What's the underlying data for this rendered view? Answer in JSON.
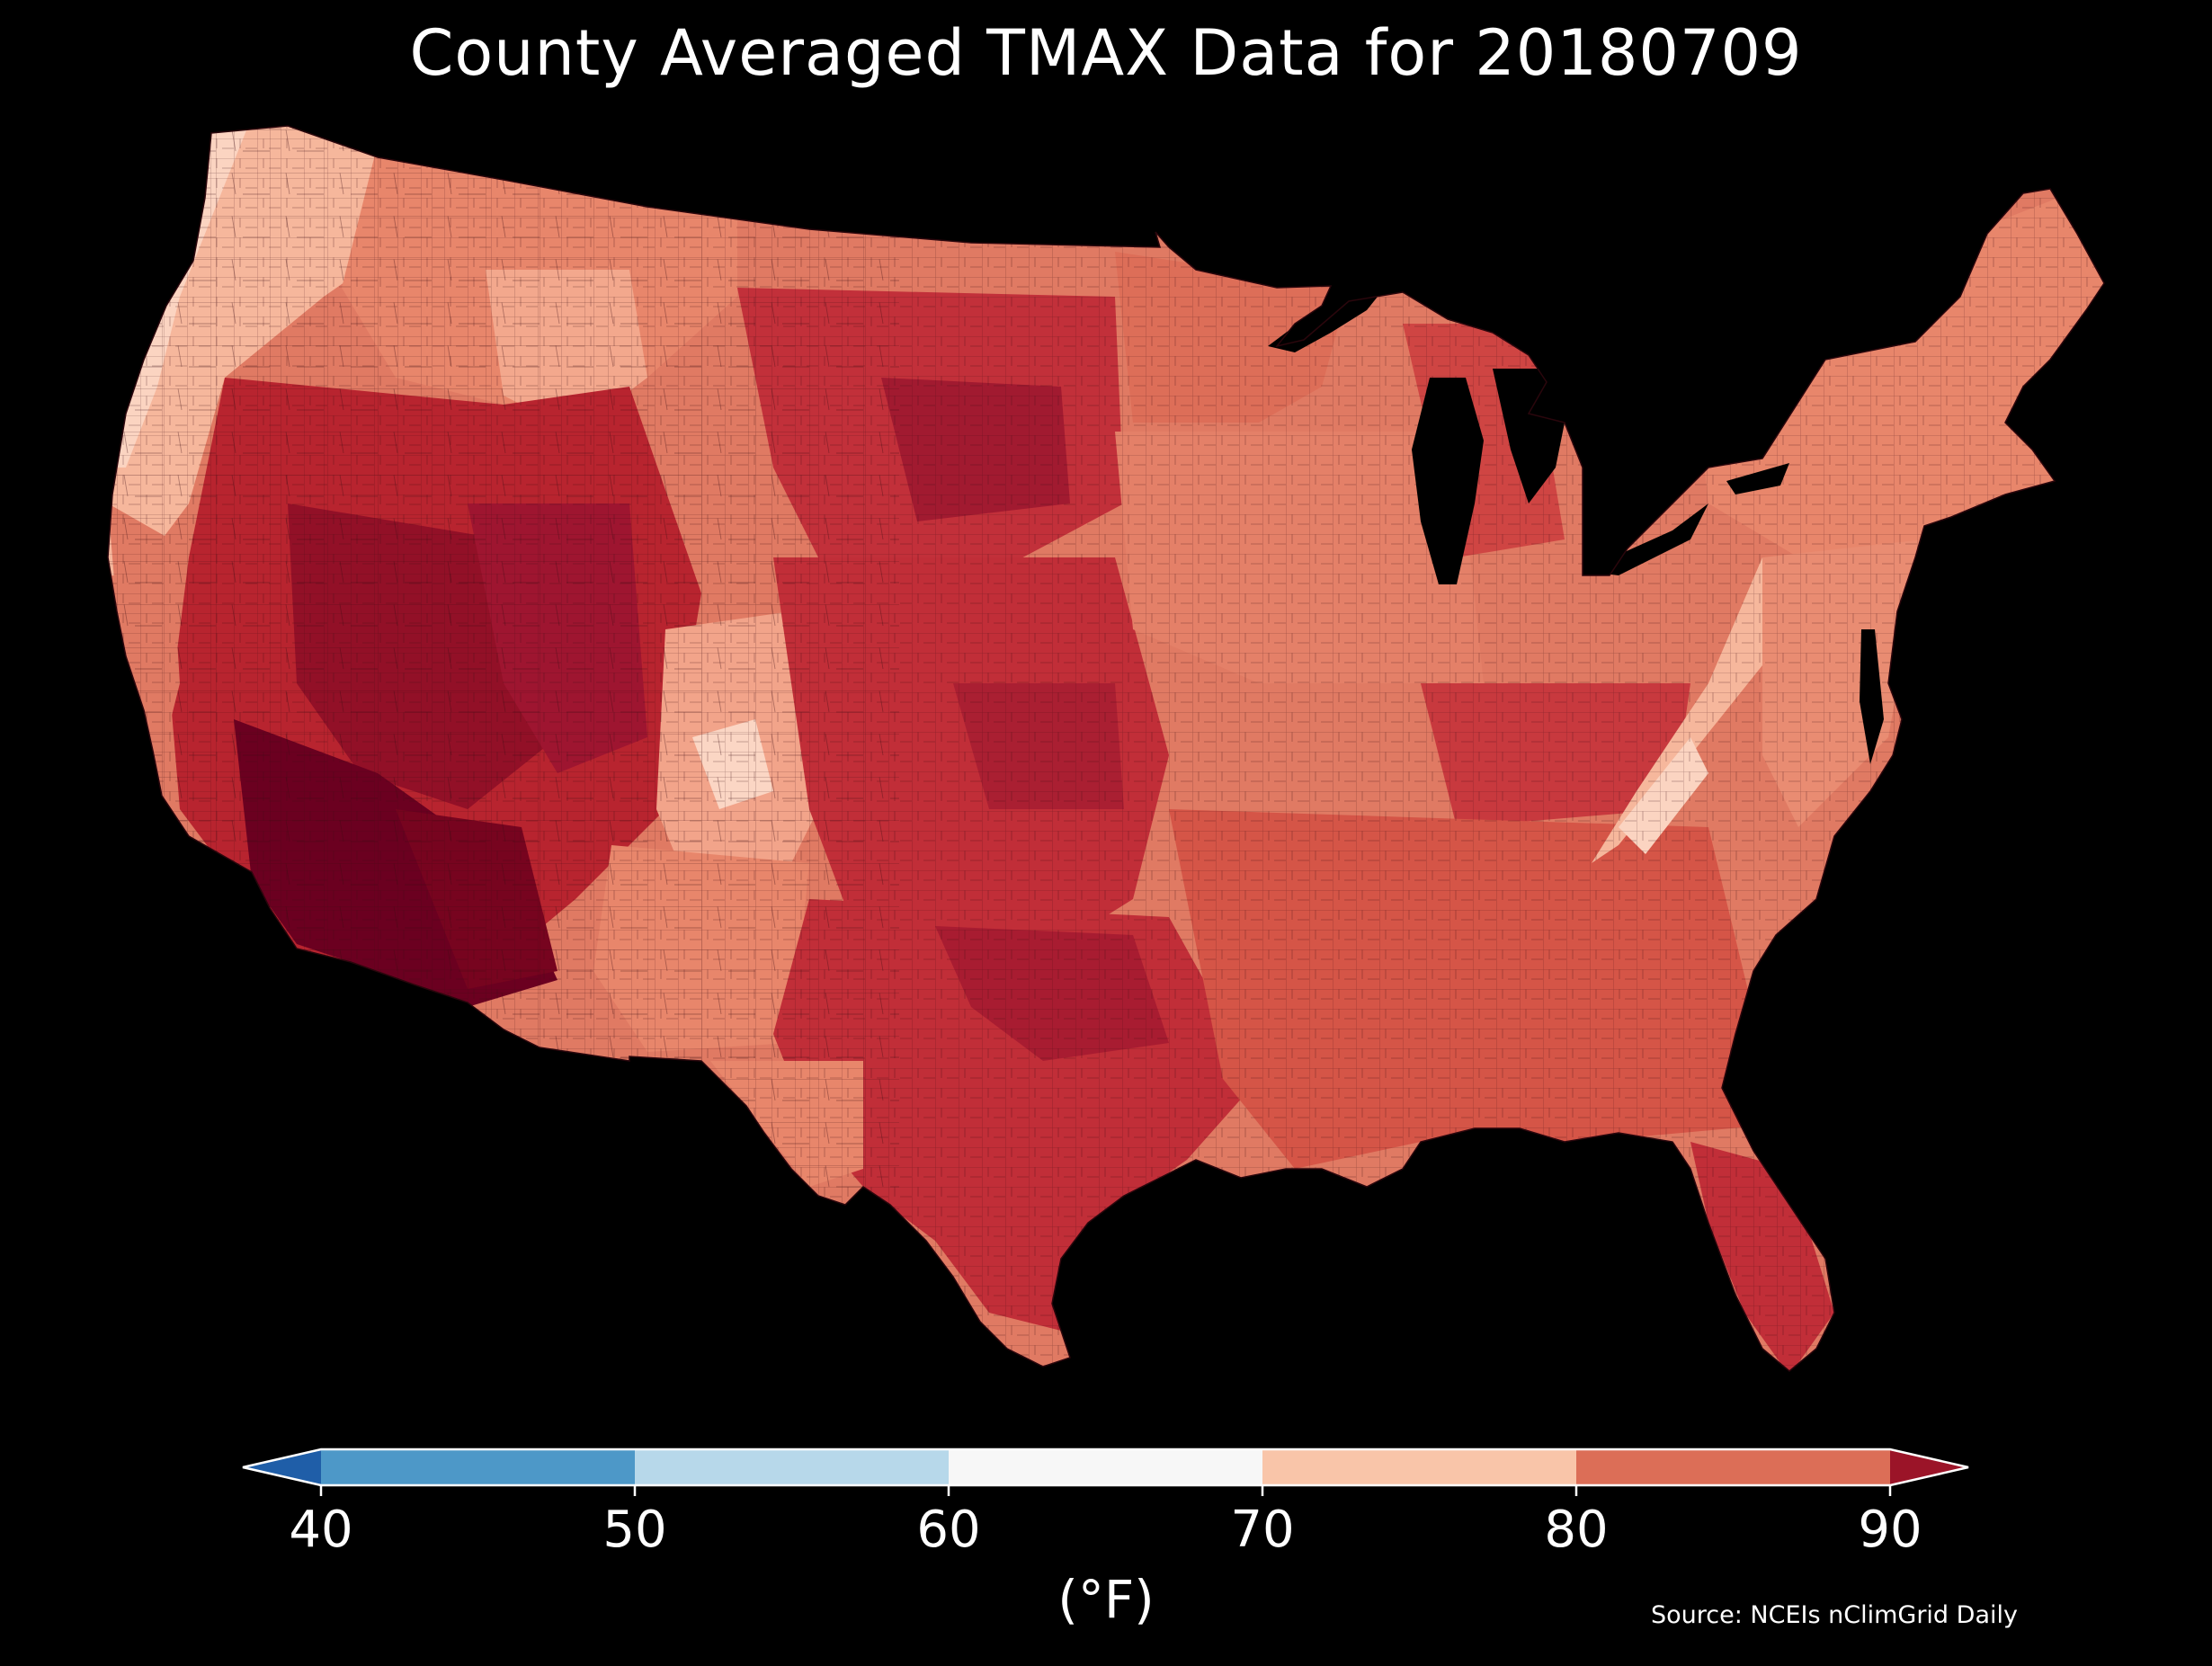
{
  "title": "County Averaged TMAX Data for 20180709",
  "source": "Source: NCEIs nClimGrid Daily",
  "colorbar": {
    "unit": "(°F)",
    "ticks": [
      "40",
      "50",
      "60",
      "70",
      "80",
      "90"
    ],
    "under_color": "#1f5ea8",
    "over_color": "#9b1428",
    "bins": [
      {
        "from": 40,
        "to": 50,
        "color": "#4d98c8"
      },
      {
        "from": 50,
        "to": 60,
        "color": "#b7d8ea"
      },
      {
        "from": 60,
        "to": 70,
        "color": "#f7f7f7"
      },
      {
        "from": 70,
        "to": 80,
        "color": "#f9c5a9"
      },
      {
        "from": 80,
        "to": 90,
        "color": "#dc6e57"
      }
    ],
    "extend": "both"
  },
  "map": {
    "region": "Contiguous United States",
    "unit_level": "county",
    "land_colors": {
      "cool": "#f6b79c",
      "mild": "#e8866b",
      "warm": "#d9594b",
      "hot": "#bf2a35",
      "very_hot": "#9b1428",
      "extreme": "#6b0020",
      "coolest": "#fde0d2"
    },
    "water_color": "#000000",
    "border_color": "#3a0a10"
  }
}
